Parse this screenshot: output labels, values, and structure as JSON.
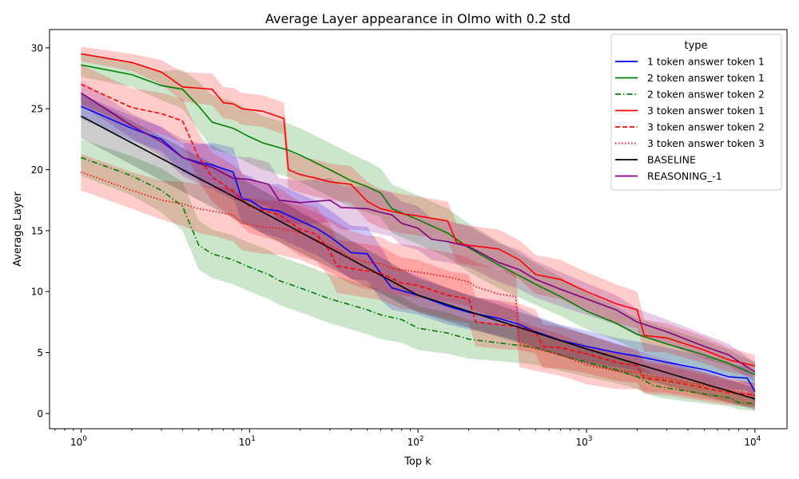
{
  "chart_data": {
    "type": "line",
    "title": "Average Layer appearance in Olmo with 0.2 std",
    "xlabel": "Top k",
    "ylabel": "Average Layer",
    "xscale": "log",
    "xlim": [
      0.65,
      15500
    ],
    "ylim": [
      -1.25,
      31.5
    ],
    "xticks": [
      {
        "value": 1,
        "base": "10",
        "exp": "0"
      },
      {
        "value": 10,
        "base": "10",
        "exp": "1"
      },
      {
        "value": 100,
        "base": "10",
        "exp": "2"
      },
      {
        "value": 1000,
        "base": "10",
        "exp": "3"
      },
      {
        "value": 10000,
        "base": "10",
        "exp": "4"
      }
    ],
    "yticks": [
      "0",
      "5",
      "10",
      "15",
      "20",
      "25",
      "30"
    ],
    "grid": false,
    "legend": {
      "title": "type",
      "position": "top-right"
    },
    "series": [
      {
        "name": "1 token answer token 1",
        "color": "#0000ff",
        "dash": "solid",
        "points": [
          [
            1,
            25.2
          ],
          [
            2,
            23.4
          ],
          [
            3,
            22.5
          ],
          [
            4,
            21
          ],
          [
            5,
            20.6
          ],
          [
            6,
            20.4
          ],
          [
            8,
            19.8
          ],
          [
            9,
            17.6
          ],
          [
            10,
            17.5
          ],
          [
            12,
            16.8
          ],
          [
            15,
            16.6
          ],
          [
            20,
            15.8
          ],
          [
            25,
            15.2
          ],
          [
            30,
            14.5
          ],
          [
            40,
            13.2
          ],
          [
            50,
            13.1
          ],
          [
            60,
            11.5
          ],
          [
            70,
            10.3
          ],
          [
            100,
            9.7
          ],
          [
            150,
            8.8
          ],
          [
            200,
            8.3
          ],
          [
            300,
            7.8
          ],
          [
            400,
            7.3
          ],
          [
            500,
            6.7
          ],
          [
            700,
            6.0
          ],
          [
            1000,
            5.5
          ],
          [
            1500,
            5.0
          ],
          [
            2000,
            4.7
          ],
          [
            3000,
            4.2
          ],
          [
            5000,
            3.6
          ],
          [
            7000,
            3.0
          ],
          [
            9000,
            2.9
          ],
          [
            10000,
            1.8
          ]
        ],
        "std": [
          1,
          1,
          1,
          1.2,
          1.5,
          1.8,
          2,
          2,
          2,
          2,
          2.2,
          2.2,
          2.2,
          2.2,
          2.2,
          2.2,
          2.2,
          1.8,
          1.6,
          1.5,
          1.4,
          1.4,
          1.4,
          1.3,
          1.3,
          1.3,
          1.2,
          1.2,
          1.2,
          1.1,
          1,
          1,
          1
        ]
      },
      {
        "name": "2 token answer token 1",
        "color": "#008000",
        "dash": "solid",
        "points": [
          [
            1,
            28.6
          ],
          [
            2,
            27.8
          ],
          [
            3,
            26.9
          ],
          [
            4,
            26.6
          ],
          [
            5,
            25.2
          ],
          [
            6,
            23.9
          ],
          [
            8,
            23.4
          ],
          [
            10,
            22.7
          ],
          [
            12,
            22.2
          ],
          [
            17,
            21.6
          ],
          [
            20,
            21.2
          ],
          [
            30,
            20
          ],
          [
            40,
            19.1
          ],
          [
            50,
            18.6
          ],
          [
            60,
            18.1
          ],
          [
            70,
            16.8
          ],
          [
            100,
            15.9
          ],
          [
            150,
            14.8
          ],
          [
            200,
            13.6
          ],
          [
            300,
            12.2
          ],
          [
            400,
            11.3
          ],
          [
            500,
            10.6
          ],
          [
            700,
            9.6
          ],
          [
            1000,
            8.4
          ],
          [
            1500,
            7.4
          ],
          [
            2000,
            6.5
          ],
          [
            3000,
            5.7
          ],
          [
            5000,
            4.8
          ],
          [
            7000,
            4.1
          ],
          [
            10000,
            3.2
          ]
        ],
        "std": [
          1,
          1,
          1.2,
          1.6,
          2,
          2.2,
          2.2,
          2.2,
          2.2,
          2.2,
          2.2,
          2.2,
          2.2,
          2.1,
          2,
          2,
          2,
          2,
          2,
          1.9,
          1.8,
          1.7,
          1.6,
          1.5,
          1.4,
          1.3,
          1.3,
          1.2,
          1.1,
          1.0
        ]
      },
      {
        "name": "2 token answer token 2",
        "color": "#008000",
        "dash": "dashdot",
        "points": [
          [
            1,
            21
          ],
          [
            2,
            19.5
          ],
          [
            3,
            18.3
          ],
          [
            4,
            17
          ],
          [
            5,
            13.8
          ],
          [
            6,
            13.1
          ],
          [
            8,
            12.6
          ],
          [
            10,
            12
          ],
          [
            13,
            11.4
          ],
          [
            15,
            10.9
          ],
          [
            20,
            10.3
          ],
          [
            30,
            9.4
          ],
          [
            40,
            8.9
          ],
          [
            50,
            8.5
          ],
          [
            60,
            8.1
          ],
          [
            80,
            7.7
          ],
          [
            100,
            7.0
          ],
          [
            150,
            6.6
          ],
          [
            200,
            6.1
          ],
          [
            300,
            5.8
          ],
          [
            500,
            5.4
          ],
          [
            700,
            4.8
          ],
          [
            1000,
            4.2
          ],
          [
            1500,
            3.6
          ],
          [
            2000,
            3.0
          ],
          [
            2500,
            2.3
          ],
          [
            3000,
            2.1
          ],
          [
            5000,
            1.6
          ],
          [
            7000,
            1.3
          ],
          [
            8000,
            0.9
          ],
          [
            10000,
            0.8
          ]
        ],
        "std": [
          1.5,
          1.6,
          1.8,
          2,
          2,
          2,
          2,
          2,
          2,
          2,
          2,
          2,
          2,
          2,
          2,
          1.9,
          1.8,
          1.7,
          1.6,
          1.5,
          1.4,
          1.3,
          1.2,
          1.1,
          1.0,
          0.9,
          0.9,
          0.8,
          0.7,
          0.6,
          0.6
        ]
      },
      {
        "name": "3 token answer token 1",
        "color": "#ff0000",
        "dash": "solid",
        "points": [
          [
            1,
            29.5
          ],
          [
            2,
            28.8
          ],
          [
            3,
            28
          ],
          [
            4,
            26.8
          ],
          [
            6,
            26.6
          ],
          [
            7,
            25.5
          ],
          [
            8,
            25.4
          ],
          [
            9,
            25.0
          ],
          [
            12,
            24.8
          ],
          [
            16,
            24.2
          ],
          [
            17,
            20
          ],
          [
            20,
            19.6
          ],
          [
            25,
            19.3
          ],
          [
            30,
            19.0
          ],
          [
            40,
            18.8
          ],
          [
            50,
            17.4
          ],
          [
            60,
            16.8
          ],
          [
            80,
            16.4
          ],
          [
            100,
            16.2
          ],
          [
            150,
            15.8
          ],
          [
            170,
            14
          ],
          [
            200,
            13.8
          ],
          [
            300,
            13.5
          ],
          [
            400,
            12.6
          ],
          [
            500,
            11.4
          ],
          [
            700,
            11
          ],
          [
            1000,
            10
          ],
          [
            1500,
            9
          ],
          [
            2000,
            8.5
          ],
          [
            2200,
            6.4
          ],
          [
            3000,
            6.2
          ],
          [
            5000,
            5.2
          ],
          [
            7000,
            4.4
          ],
          [
            10000,
            3.9
          ]
        ],
        "std": [
          0.6,
          0.7,
          1,
          1.2,
          1.3,
          1.3,
          1.3,
          1.3,
          1.3,
          1.3,
          1.5,
          1.5,
          1.5,
          1.5,
          1.5,
          1.6,
          1.6,
          1.6,
          1.6,
          1.6,
          1.6,
          1.6,
          1.6,
          1.6,
          1.6,
          1.6,
          1.6,
          1.6,
          1.5,
          1.3,
          1.2,
          1.1,
          1,
          0.9
        ]
      },
      {
        "name": "3 token answer token 2",
        "color": "#ff0000",
        "dash": "dashed",
        "points": [
          [
            1,
            27
          ],
          [
            2,
            25.1
          ],
          [
            3,
            24.6
          ],
          [
            4,
            24
          ],
          [
            5,
            21
          ],
          [
            6,
            19.4
          ],
          [
            8,
            18.2
          ],
          [
            10,
            17
          ],
          [
            15,
            16.3
          ],
          [
            20,
            15.1
          ],
          [
            25,
            14.7
          ],
          [
            30,
            13.3
          ],
          [
            33,
            12.1
          ],
          [
            40,
            11.9
          ],
          [
            60,
            11.5
          ],
          [
            80,
            10.7
          ],
          [
            100,
            10.5
          ],
          [
            150,
            9.7
          ],
          [
            200,
            9.4
          ],
          [
            220,
            7.5
          ],
          [
            300,
            7.3
          ],
          [
            400,
            7.1
          ],
          [
            500,
            6.7
          ],
          [
            550,
            5.5
          ],
          [
            700,
            5.4
          ],
          [
            1000,
            4.9
          ],
          [
            1500,
            4.2
          ],
          [
            2000,
            3.9
          ],
          [
            2200,
            2.9
          ],
          [
            3000,
            2.7
          ],
          [
            5000,
            2.1
          ],
          [
            7000,
            1.7
          ],
          [
            10000,
            1.5
          ]
        ],
        "std": [
          1.6,
          1.6,
          1.7,
          1.8,
          2,
          2,
          2.2,
          2.2,
          2.2,
          2.2,
          2.2,
          2.2,
          2.2,
          2.2,
          2.2,
          2.1,
          2.1,
          2,
          2,
          2,
          2,
          1.9,
          1.8,
          1.8,
          1.7,
          1.6,
          1.5,
          1.4,
          1.3,
          1.2,
          1.1,
          1,
          1
        ]
      },
      {
        "name": "3 token answer token 3",
        "color": "#ff0000",
        "dash": "dotted",
        "points": [
          [
            1,
            19.8
          ],
          [
            2,
            18.3
          ],
          [
            3,
            17.5
          ],
          [
            4,
            17.2
          ],
          [
            5,
            16.8
          ],
          [
            6,
            16.6
          ],
          [
            8,
            16.3
          ],
          [
            9,
            15.6
          ],
          [
            12,
            15.3
          ],
          [
            15,
            15.2
          ],
          [
            20,
            14.8
          ],
          [
            30,
            13.8
          ],
          [
            40,
            12.8
          ],
          [
            50,
            12.4
          ],
          [
            60,
            12.3
          ],
          [
            70,
            11.9
          ],
          [
            100,
            11.6
          ],
          [
            150,
            11.2
          ],
          [
            200,
            10.8
          ],
          [
            220,
            10.4
          ],
          [
            300,
            9.8
          ],
          [
            380,
            9.6
          ],
          [
            400,
            5.7
          ],
          [
            500,
            5.3
          ],
          [
            700,
            4.8
          ],
          [
            1000,
            4.0
          ],
          [
            1500,
            3.5
          ],
          [
            2000,
            3.4
          ],
          [
            2200,
            3.1
          ],
          [
            3000,
            2.9
          ],
          [
            5000,
            2.3
          ],
          [
            7000,
            1.9
          ],
          [
            10000,
            1.5
          ]
        ],
        "std": [
          1.5,
          1.5,
          1.6,
          1.8,
          2,
          2,
          2.2,
          2.2,
          2.2,
          2.2,
          2.2,
          2.2,
          2.2,
          2.2,
          2.2,
          2.1,
          2.1,
          2,
          2,
          2,
          2,
          2,
          1.9,
          1.8,
          1.7,
          1.6,
          1.5,
          1.4,
          1.3,
          1.2,
          1.1,
          1,
          1
        ]
      },
      {
        "name": "BASELINE",
        "color": "#000000",
        "dash": "solid",
        "points": [
          [
            1,
            24.4
          ],
          [
            10,
            17.1
          ],
          [
            100,
            9.7
          ],
          [
            1000,
            5.3
          ],
          [
            10000,
            1.2
          ]
        ],
        "std": [
          1.8,
          1.8,
          1.4,
          1.2,
          0.9
        ]
      },
      {
        "name": "REASONING_-1",
        "color": "#800080",
        "dash": "solid",
        "points": [
          [
            1,
            26.3
          ],
          [
            2,
            23.6
          ],
          [
            3,
            22.3
          ],
          [
            4,
            21
          ],
          [
            5,
            20.5
          ],
          [
            6,
            20.2
          ],
          [
            8,
            19.3
          ],
          [
            10,
            19.2
          ],
          [
            13,
            18.8
          ],
          [
            15,
            17.5
          ],
          [
            20,
            17.3
          ],
          [
            30,
            17.5
          ],
          [
            35,
            16.9
          ],
          [
            50,
            16.8
          ],
          [
            60,
            16.5
          ],
          [
            70,
            16.3
          ],
          [
            80,
            15.6
          ],
          [
            100,
            15.2
          ],
          [
            120,
            14.3
          ],
          [
            150,
            14.1
          ],
          [
            200,
            13.7
          ],
          [
            300,
            12.4
          ],
          [
            400,
            11.8
          ],
          [
            500,
            11.0
          ],
          [
            700,
            10.2
          ],
          [
            1000,
            9.4
          ],
          [
            1500,
            8.5
          ],
          [
            2000,
            7.5
          ],
          [
            3000,
            6.7
          ],
          [
            5000,
            5.5
          ],
          [
            7000,
            4.8
          ],
          [
            10000,
            3.4
          ]
        ],
        "std": [
          1,
          1,
          1.2,
          1.5,
          1.7,
          1.8,
          1.8,
          1.8,
          1.8,
          1.8,
          1.8,
          1.8,
          1.8,
          1.8,
          1.8,
          1.8,
          1.8,
          1.8,
          1.7,
          1.7,
          1.7,
          1.6,
          1.6,
          1.5,
          1.4,
          1.3,
          1.2,
          1.1,
          1,
          1,
          0.9,
          0.8
        ]
      }
    ]
  }
}
